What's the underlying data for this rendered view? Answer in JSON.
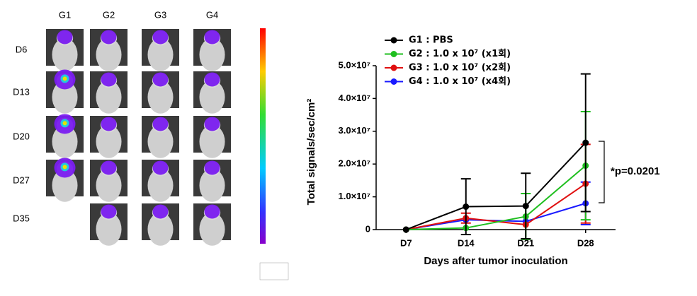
{
  "panel": {
    "groups": [
      "G1",
      "G2",
      "G3",
      "G4"
    ],
    "days": [
      "D6",
      "D13",
      "D20",
      "D27",
      "D35"
    ]
  },
  "chart_data": {
    "type": "line",
    "categories": [
      "D7",
      "D14",
      "D21",
      "D28"
    ],
    "xlabel": "Days after tumor inoculation",
    "ylabel": "Total signals/sec/cm²",
    "ylim": [
      0,
      50000000
    ],
    "yticks": [
      0,
      {
        "value": 10000000,
        "label": "1.0×10⁷"
      },
      {
        "value": 20000000,
        "label": "2.0×10⁷"
      },
      {
        "value": 30000000,
        "label": "3.0×10⁷"
      },
      {
        "value": 40000000,
        "label": "4.0×10⁷"
      },
      {
        "value": 50000000,
        "label": "5.0×10⁷"
      }
    ],
    "legend": "upper left",
    "annotation": "*p=0.0201",
    "series": [
      {
        "name": "G1 : PBS",
        "color": "#000000",
        "values": [
          0,
          7000000,
          7200000,
          26500000
        ],
        "errors": [
          null,
          8500000,
          10000000,
          21000000
        ]
      },
      {
        "name": "G2 : 1.0 x 10⁷ (x1회)",
        "color": "#1fbf1f",
        "values": [
          0,
          500000,
          4000000,
          19500000
        ],
        "errors": [
          null,
          null,
          7000000,
          16500000
        ]
      },
      {
        "name": "G3 : 1.0 x 10⁷ (x2회)",
        "color": "#e01010",
        "values": [
          0,
          3500000,
          1500000,
          14000000
        ],
        "errors": [
          null,
          1500000,
          null,
          12000000
        ]
      },
      {
        "name": "G4 : 1.0 x 10⁷ (x4회)",
        "color": "#1a1aff",
        "values": [
          0,
          3000000,
          2500000,
          8000000
        ],
        "errors": [
          null,
          null,
          null,
          6500000
        ]
      }
    ]
  }
}
